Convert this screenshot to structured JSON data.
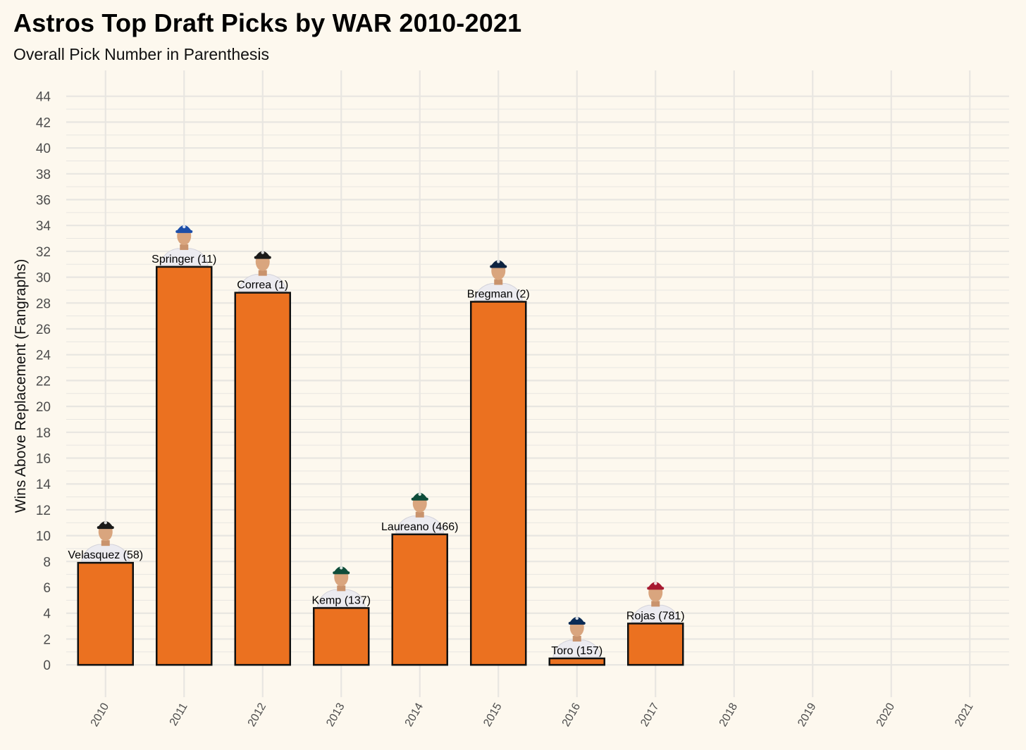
{
  "chart_data": {
    "type": "bar",
    "title": "Astros Top Draft Picks by WAR 2010-2021",
    "subtitle": "Overall Pick Number in Parenthesis",
    "xlabel": "",
    "ylabel": "Wins Above Replacement (Fangraphs)",
    "ylim": [
      -2.5,
      46
    ],
    "yticks": [
      0,
      2,
      4,
      6,
      8,
      10,
      12,
      14,
      16,
      18,
      20,
      22,
      24,
      26,
      28,
      30,
      32,
      34,
      36,
      38,
      40,
      42,
      44
    ],
    "categories": [
      "2010",
      "2011",
      "2012",
      "2013",
      "2014",
      "2015",
      "2016",
      "2017",
      "2018",
      "2019",
      "2020",
      "2021"
    ],
    "values": [
      7.9,
      30.8,
      28.8,
      4.4,
      10.1,
      28.1,
      0.5,
      3.2,
      null,
      null,
      null,
      null
    ],
    "bar_labels": [
      "Velasquez (58)",
      "Springer (11)",
      "Correa (1)",
      "Kemp (137)",
      "Laureano (466)",
      "Bregman (2)",
      "Toro (157)",
      "Rojas (781)",
      "",
      "",
      "",
      ""
    ],
    "player_cap_colors": [
      "#1a1a1a",
      "#1d4ea8",
      "#1a1a1a",
      "#0f4d3a",
      "#0f4d3a",
      "#0d2340",
      "#0c2c56",
      "#a71930",
      "",
      "",
      "",
      ""
    ],
    "grid": true,
    "legend": "none",
    "colors": {
      "bar_fill": "#eb7120",
      "bar_stroke": "#111111",
      "grid": "#e8e6e1",
      "background": "#fdf8ee"
    }
  }
}
